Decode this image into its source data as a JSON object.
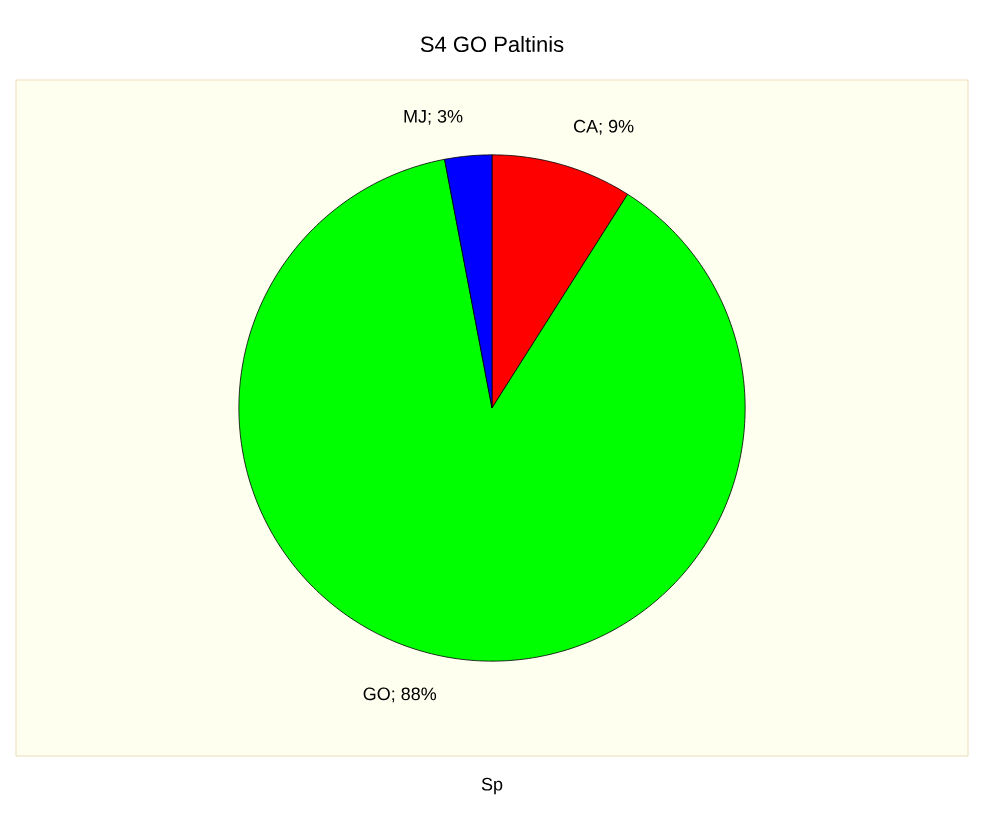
{
  "chart_data": {
    "type": "pie",
    "title": "S4 GO Paltinis",
    "xlabel": "Sp",
    "categories": [
      "CA",
      "GO",
      "MJ"
    ],
    "values": [
      9,
      88,
      3
    ],
    "value_labels": [
      "; 9%",
      "; 88%",
      "; 3%"
    ],
    "colors": [
      "#ff0000",
      "#00ff00",
      "#0000ff"
    ],
    "legend": false
  }
}
